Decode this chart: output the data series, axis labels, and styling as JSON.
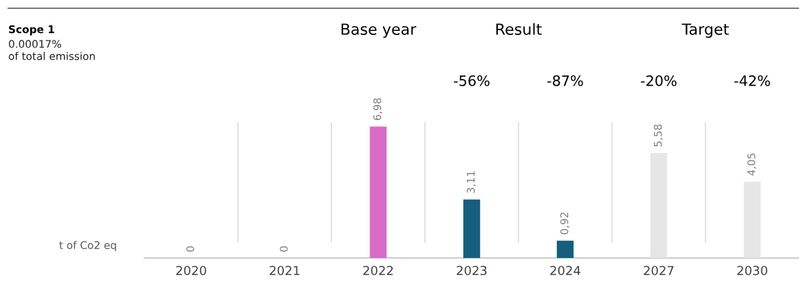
{
  "chart_data": {
    "type": "bar",
    "title": "Scope 1",
    "subtitle": "0.00017%\nof total emission",
    "ylabel": "t of Co2 eq",
    "categories": [
      "2020",
      "2021",
      "2022",
      "2023",
      "2024",
      "2027",
      "2030"
    ],
    "values": [
      0,
      0,
      6.98,
      3.11,
      0.92,
      5.58,
      4.05
    ],
    "colors": [
      "#d9d9d9",
      "#d9d9d9",
      "#d86bc8",
      "#155e80",
      "#155e80",
      "#e6e6e6",
      "#e6e6e6"
    ],
    "value_labels": [
      "0",
      "0",
      "6,98",
      "3,11",
      "0,92",
      "5,58",
      "4,05"
    ],
    "annotations": [
      "Base year",
      "Result",
      "Target",
      "-56%",
      "-87%",
      "-20%",
      "-42%"
    ],
    "grid": false,
    "legend": false
  }
}
